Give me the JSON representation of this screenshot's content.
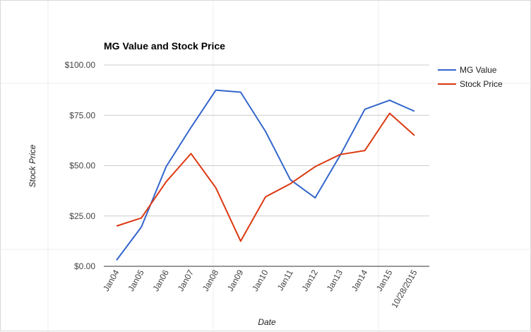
{
  "chart_data": {
    "type": "line",
    "title": "MG Value and Stock Price",
    "xlabel": "Date",
    "ylabel": "Stock Price",
    "categories": [
      "Jan04",
      "Jan05",
      "Jan06",
      "Jan07",
      "Jan08",
      "Jan09",
      "Jan10",
      "Jan11",
      "Jan12",
      "Jan13",
      "Jan14",
      "Jan15",
      "10/28/2015"
    ],
    "series": [
      {
        "name": "MG Value",
        "color": "#3366cc",
        "values": [
          3,
          19.5,
          49.5,
          69,
          87.5,
          86.5,
          67,
          43,
          34,
          55,
          78,
          82.5,
          77
        ]
      },
      {
        "name": "Stock Price",
        "color": "#dc3912",
        "values": [
          20,
          24,
          42,
          56,
          39,
          12.5,
          34.5,
          41,
          49.5,
          55.5,
          57.5,
          76,
          65
        ]
      }
    ],
    "ylim": [
      0,
      100
    ],
    "yticks": [
      0,
      25,
      50,
      75,
      100
    ],
    "ytick_labels": [
      "$0.00",
      "$25.00",
      "$50.00",
      "$75.00",
      "$100.00"
    ],
    "grid": true,
    "legend": "right"
  }
}
